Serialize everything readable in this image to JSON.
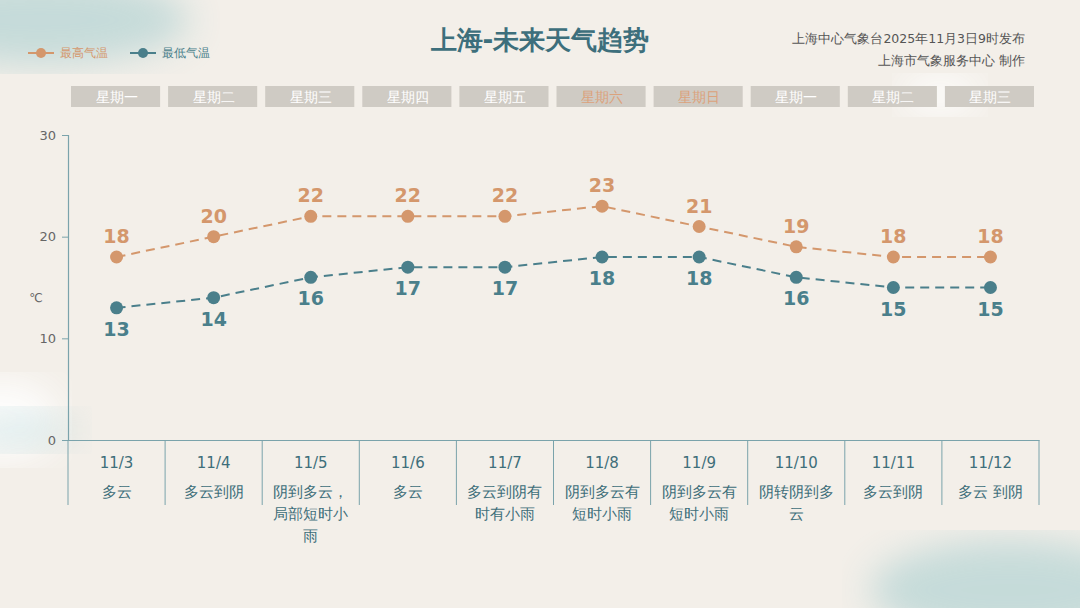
{
  "chart_data": {
    "type": "line",
    "title": "上海-未来天气趋势",
    "subtitle": "上海中心气象台2025年11月3日9时发布",
    "credit": "上海市气象服务中心 制作",
    "y_label": "℃",
    "categories": [
      "11/3",
      "11/4",
      "11/5",
      "11/6",
      "11/7",
      "11/8",
      "11/9",
      "11/10",
      "11/11",
      "11/12"
    ],
    "weekdays": {
      "labels": [
        "星期一",
        "星期二",
        "星期三",
        "星期四",
        "星期五",
        "星期六",
        "星期日",
        "星期一",
        "星期二",
        "星期三"
      ],
      "colors": [
        "#ffffff",
        "#ffffff",
        "#ffffff",
        "#ffffff",
        "#ffffff",
        "#dca27c",
        "#dca27c",
        "#ffffff",
        "#ffffff",
        "#ffffff"
      ]
    },
    "weather": [
      "多云",
      "多云到阴",
      "阴到多云，局部短时小雨",
      "多云",
      "多云到阴有时有小雨",
      "阴到多云有短时小雨",
      "阴到多云有短时小雨",
      "阴转阴到多云",
      "多云到阴",
      "多云 到阴"
    ],
    "series": [
      {
        "name": "最高气温",
        "color": "#d4976c",
        "values": [
          18,
          20,
          22,
          22,
          22,
          23,
          21,
          19,
          18,
          18
        ]
      },
      {
        "name": "最低气温",
        "color": "#4a7f8b",
        "values": [
          13,
          14,
          16,
          17,
          17,
          18,
          18,
          16,
          15,
          15
        ]
      }
    ],
    "ylim": [
      0,
      30
    ],
    "yticks": [
      0,
      10,
      20,
      30
    ],
    "data_labels": true,
    "marker": "circle",
    "line_style": "dashed",
    "legend": "top-left"
  }
}
